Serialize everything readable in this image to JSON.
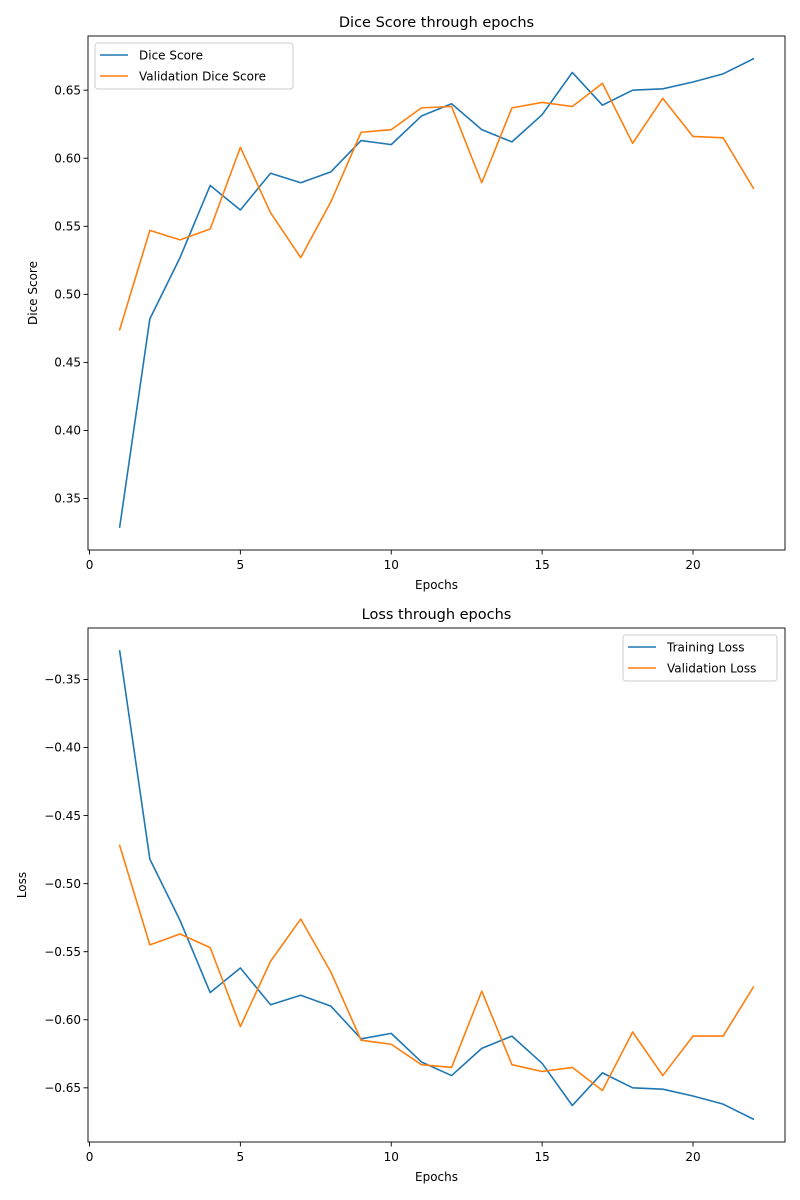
{
  "chart_data": [
    {
      "type": "line",
      "title": "Dice Score through epochs",
      "xlabel": "Epochs",
      "ylabel": "Dice Score",
      "xlim": [
        -0.05,
        23.05
      ],
      "ylim": [
        0.3122,
        0.6898
      ],
      "xticks": [
        0,
        5,
        10,
        15,
        20
      ],
      "xtick_labels": [
        "0",
        "5",
        "10",
        "15",
        "20"
      ],
      "yticks": [
        0.35,
        0.4,
        0.45,
        0.5,
        0.55,
        0.6,
        0.65
      ],
      "ytick_labels": [
        "0.35",
        "0.40",
        "0.45",
        "0.50",
        "0.55",
        "0.60",
        "0.65"
      ],
      "legend_position": "top-left",
      "x": [
        1,
        2,
        3,
        4,
        5,
        6,
        7,
        8,
        9,
        10,
        11,
        12,
        13,
        14,
        15,
        16,
        17,
        18,
        19,
        20,
        21,
        22
      ],
      "series": [
        {
          "name": "Dice Score",
          "color": "#1f77b4",
          "values": [
            0.329,
            0.482,
            0.527,
            0.58,
            0.562,
            0.589,
            0.582,
            0.59,
            0.613,
            0.61,
            0.631,
            0.64,
            0.621,
            0.612,
            0.632,
            0.663,
            0.639,
            0.65,
            0.651,
            0.656,
            0.662,
            0.673
          ]
        },
        {
          "name": "Validation Dice Score",
          "color": "#ff7f0e",
          "values": [
            0.474,
            0.547,
            0.54,
            0.548,
            0.608,
            0.56,
            0.527,
            0.568,
            0.619,
            0.621,
            0.637,
            0.638,
            0.582,
            0.637,
            0.641,
            0.638,
            0.655,
            0.611,
            0.644,
            0.616,
            0.615,
            0.578
          ]
        }
      ]
    },
    {
      "type": "line",
      "title": "Loss through epochs",
      "xlabel": "Epochs",
      "ylabel": "Loss",
      "xlim": [
        -0.05,
        23.05
      ],
      "ylim": [
        -0.6898,
        -0.3122
      ],
      "xticks": [
        0,
        5,
        10,
        15,
        20
      ],
      "xtick_labels": [
        "0",
        "5",
        "10",
        "15",
        "20"
      ],
      "yticks": [
        -0.65,
        -0.6,
        -0.55,
        -0.5,
        -0.45,
        -0.4,
        -0.35
      ],
      "ytick_labels": [
        "−0.65",
        "−0.60",
        "−0.55",
        "−0.50",
        "−0.45",
        "−0.40",
        "−0.35"
      ],
      "legend_position": "top-right",
      "x": [
        1,
        2,
        3,
        4,
        5,
        6,
        7,
        8,
        9,
        10,
        11,
        12,
        13,
        14,
        15,
        16,
        17,
        18,
        19,
        20,
        21,
        22
      ],
      "series": [
        {
          "name": "Training Loss",
          "color": "#1f77b4",
          "values": [
            -0.329,
            -0.482,
            -0.527,
            -0.58,
            -0.562,
            -0.589,
            -0.582,
            -0.59,
            -0.614,
            -0.61,
            -0.631,
            -0.641,
            -0.621,
            -0.612,
            -0.632,
            -0.663,
            -0.639,
            -0.65,
            -0.651,
            -0.656,
            -0.662,
            -0.673
          ]
        },
        {
          "name": "Validation Loss",
          "color": "#ff7f0e",
          "values": [
            -0.472,
            -0.545,
            -0.537,
            -0.547,
            -0.605,
            -0.557,
            -0.526,
            -0.565,
            -0.615,
            -0.618,
            -0.633,
            -0.635,
            -0.579,
            -0.633,
            -0.638,
            -0.635,
            -0.652,
            -0.609,
            -0.641,
            -0.612,
            -0.612,
            -0.576
          ]
        }
      ]
    }
  ]
}
